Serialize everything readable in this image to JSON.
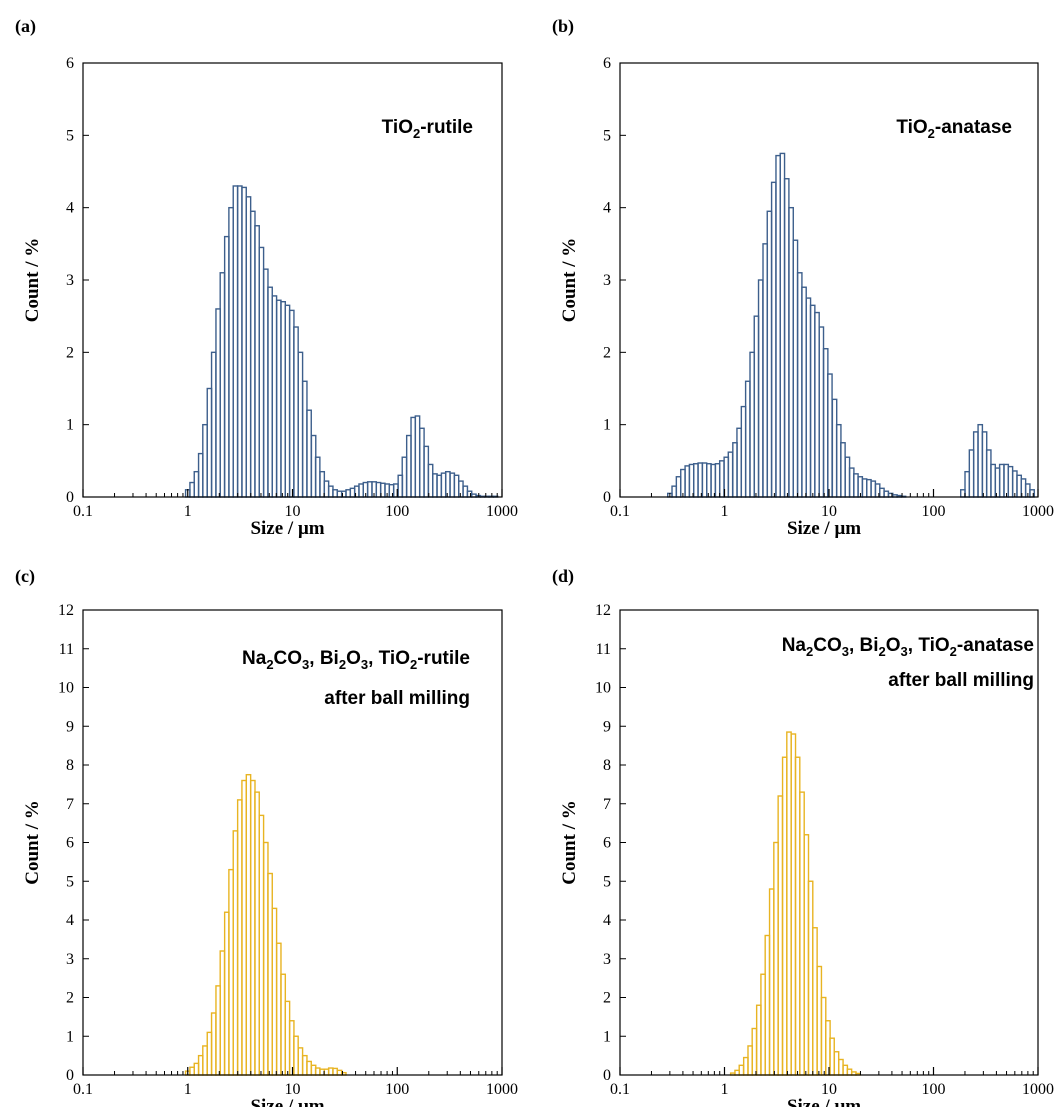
{
  "chart_data": [
    {
      "type": "bar",
      "panel_label": "(a)",
      "annotation_lines": [
        [
          "TiO",
          "2",
          "-rutile"
        ]
      ],
      "xlabel": "Size / μm",
      "ylabel": "Count / %",
      "xscale": "log",
      "xlim": [
        0.1,
        1000
      ],
      "ylim": [
        0,
        6
      ],
      "xticks": [
        "0.1",
        "1",
        "10",
        "100",
        "1000"
      ],
      "yticks": [
        "0",
        "1",
        "2",
        "3",
        "4",
        "5",
        "6"
      ],
      "bar_color": "#3d5f8c",
      "x": [
        1.0,
        1.1,
        1.21,
        1.33,
        1.46,
        1.61,
        1.77,
        1.95,
        2.14,
        2.36,
        2.59,
        2.85,
        3.14,
        3.45,
        3.8,
        4.18,
        4.59,
        5.05,
        5.56,
        6.11,
        6.72,
        7.4,
        8.14,
        8.95,
        9.84,
        10.8,
        11.9,
        13.1,
        14.4,
        15.9,
        17.4,
        19.2,
        21.1,
        23.2,
        25.5,
        28.1,
        30.9,
        34.0,
        37.4,
        41.1,
        45.2,
        49.7,
        54.7,
        60.2,
        66.2,
        72.8,
        80.1,
        88.1,
        96.9,
        107,
        117,
        129,
        142,
        156,
        172,
        189,
        208,
        229,
        251,
        277,
        304,
        335,
        368,
        405,
        446,
        490,
        539,
        593,
        652,
        717,
        789,
        868
      ],
      "values": [
        0.1,
        0.2,
        0.35,
        0.6,
        1.0,
        1.5,
        2.0,
        2.6,
        3.1,
        3.6,
        4.0,
        4.3,
        4.3,
        4.28,
        4.15,
        3.95,
        3.75,
        3.45,
        3.15,
        2.9,
        2.78,
        2.72,
        2.7,
        2.65,
        2.58,
        2.35,
        2.0,
        1.6,
        1.2,
        0.85,
        0.55,
        0.35,
        0.22,
        0.15,
        0.1,
        0.08,
        0.08,
        0.1,
        0.12,
        0.15,
        0.18,
        0.2,
        0.21,
        0.21,
        0.2,
        0.19,
        0.18,
        0.17,
        0.18,
        0.3,
        0.55,
        0.85,
        1.1,
        1.12,
        0.95,
        0.7,
        0.45,
        0.32,
        0.3,
        0.33,
        0.35,
        0.33,
        0.3,
        0.22,
        0.15,
        0.08,
        0.04,
        0.02,
        0.01,
        0.01,
        0.01,
        0.01
      ]
    },
    {
      "type": "bar",
      "panel_label": "(b)",
      "annotation_lines": [
        [
          "TiO",
          "2",
          "-anatase"
        ]
      ],
      "xlabel": "Size / μm",
      "ylabel": "Count / %",
      "xscale": "log",
      "xlim": [
        0.1,
        1000
      ],
      "ylim": [
        0,
        6
      ],
      "xticks": [
        "0.1",
        "1",
        "10",
        "100",
        "1000"
      ],
      "yticks": [
        "0",
        "1",
        "2",
        "3",
        "4",
        "5",
        "6"
      ],
      "bar_color": "#3d5f8c",
      "x": [
        0.3,
        0.33,
        0.363,
        0.4,
        0.44,
        0.484,
        0.532,
        0.586,
        0.644,
        0.709,
        0.78,
        0.858,
        0.943,
        1.04,
        1.14,
        1.26,
        1.38,
        1.52,
        1.67,
        1.84,
        2.02,
        2.22,
        2.45,
        2.69,
        2.96,
        3.26,
        3.58,
        3.94,
        4.34,
        4.77,
        5.25,
        5.77,
        6.35,
        6.98,
        7.68,
        8.45,
        9.3,
        10.2,
        11.3,
        12.4,
        13.6,
        15.0,
        16.5,
        18.1,
        19.9,
        21.9,
        24.1,
        26.5,
        29.2,
        32.1,
        35.3,
        38.9,
        42.8,
        47.0,
        51.7,
        191,
        210,
        231,
        254,
        280,
        308,
        338,
        372,
        410,
        450,
        496,
        545,
        600,
        660,
        726,
        798,
        878
      ],
      "values": [
        0.05,
        0.15,
        0.28,
        0.38,
        0.43,
        0.45,
        0.46,
        0.47,
        0.47,
        0.46,
        0.45,
        0.46,
        0.5,
        0.55,
        0.62,
        0.75,
        0.95,
        1.25,
        1.6,
        2.0,
        2.5,
        3.0,
        3.5,
        3.95,
        4.35,
        4.72,
        4.75,
        4.4,
        4.0,
        3.55,
        3.1,
        2.9,
        2.75,
        2.65,
        2.55,
        2.35,
        2.05,
        1.7,
        1.35,
        1.0,
        0.75,
        0.55,
        0.4,
        0.32,
        0.28,
        0.25,
        0.24,
        0.22,
        0.18,
        0.12,
        0.08,
        0.05,
        0.03,
        0.02,
        0.01,
        0.1,
        0.35,
        0.65,
        0.9,
        1.0,
        0.9,
        0.65,
        0.45,
        0.4,
        0.45,
        0.45,
        0.42,
        0.36,
        0.3,
        0.25,
        0.18,
        0.1
      ]
    },
    {
      "type": "bar",
      "panel_label": "(c)",
      "annotation_lines": [
        [
          "Na",
          "2",
          "CO",
          "3",
          ", Bi",
          "2",
          "O",
          "3",
          ", TiO",
          "2",
          "-rutile"
        ],
        [
          "after ball milling"
        ]
      ],
      "xlabel": "Size / μm",
      "ylabel": "Count / %",
      "xscale": "log",
      "xlim": [
        0.1,
        1000
      ],
      "ylim": [
        0,
        12
      ],
      "xticks": [
        "0.1",
        "1",
        "10",
        "100",
        "1000"
      ],
      "yticks": [
        "0",
        "1",
        "2",
        "3",
        "4",
        "5",
        "6",
        "7",
        "8",
        "9",
        "10",
        "11",
        "12"
      ],
      "bar_color": "#e8b422",
      "x": [
        1.0,
        1.1,
        1.21,
        1.33,
        1.46,
        1.61,
        1.77,
        1.95,
        2.14,
        2.36,
        2.59,
        2.85,
        3.14,
        3.45,
        3.8,
        4.18,
        4.59,
        5.05,
        5.56,
        6.11,
        6.72,
        7.4,
        8.14,
        8.95,
        9.84,
        10.8,
        11.9,
        13.1,
        14.4,
        15.9,
        17.4,
        19.2,
        21.1,
        23.2,
        25.5,
        28.1,
        30.9
      ],
      "values": [
        0.1,
        0.2,
        0.3,
        0.5,
        0.75,
        1.1,
        1.6,
        2.3,
        3.2,
        4.2,
        5.3,
        6.3,
        7.1,
        7.6,
        7.75,
        7.6,
        7.3,
        6.7,
        6.0,
        5.2,
        4.3,
        3.4,
        2.6,
        1.9,
        1.4,
        1.0,
        0.7,
        0.5,
        0.35,
        0.25,
        0.18,
        0.15,
        0.15,
        0.18,
        0.17,
        0.12,
        0.06
      ]
    },
    {
      "type": "bar",
      "panel_label": "(d)",
      "annotation_lines": [
        [
          "Na",
          "2",
          "CO",
          "3",
          ", Bi",
          "2",
          "O",
          "3",
          ", TiO",
          "2",
          "-anatase"
        ],
        [
          "after ball milling"
        ]
      ],
      "xlabel": "Size / μm",
      "ylabel": "Count / %",
      "xscale": "log",
      "xlim": [
        0.1,
        1000
      ],
      "ylim": [
        0,
        12
      ],
      "xticks": [
        "0.1",
        "1",
        "10",
        "100",
        "1000"
      ],
      "yticks": [
        "0",
        "1",
        "2",
        "3",
        "4",
        "5",
        "6",
        "7",
        "8",
        "9",
        "10",
        "11",
        "12"
      ],
      "bar_color": "#e8b422",
      "x": [
        1.2,
        1.32,
        1.45,
        1.6,
        1.76,
        1.93,
        2.13,
        2.34,
        2.57,
        2.83,
        3.11,
        3.42,
        3.77,
        4.14,
        4.56,
        5.01,
        5.52,
        6.07,
        6.67,
        7.34,
        8.07,
        8.88,
        9.77,
        10.7,
        11.8,
        13.0,
        14.3,
        15.7,
        17.3,
        19.0
      ],
      "values": [
        0.05,
        0.12,
        0.25,
        0.45,
        0.75,
        1.2,
        1.8,
        2.6,
        3.6,
        4.8,
        6.0,
        7.2,
        8.2,
        8.85,
        8.8,
        8.2,
        7.3,
        6.2,
        5.0,
        3.8,
        2.8,
        2.0,
        1.4,
        0.95,
        0.6,
        0.4,
        0.25,
        0.15,
        0.08,
        0.04
      ]
    }
  ]
}
